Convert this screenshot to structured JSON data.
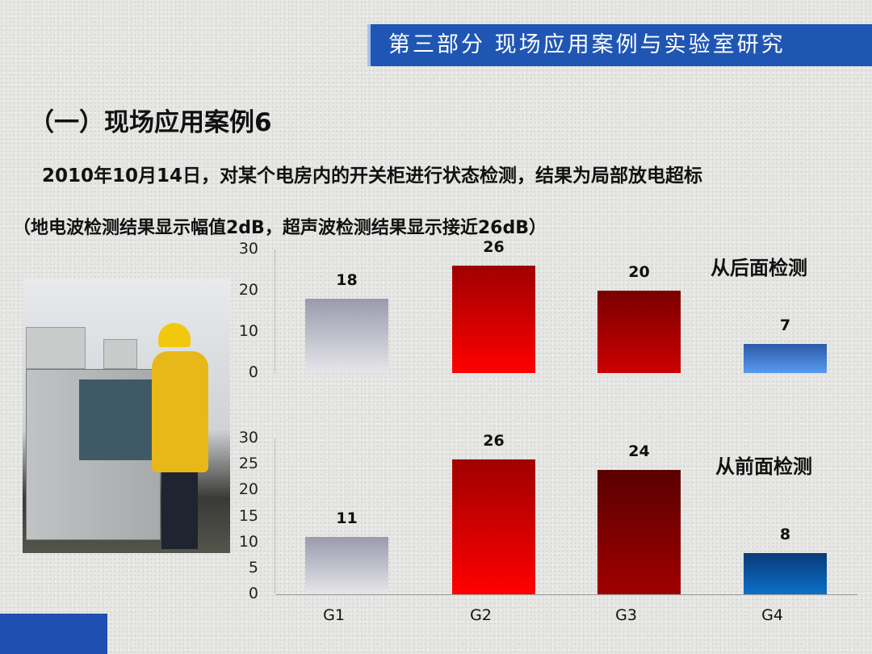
{
  "header": {
    "banner": "第三部分 现场应用案例与实验室研究"
  },
  "title": "（一）现场应用案例6",
  "description": "2010年10月14日，对某个电房内的开关柜进行状态检测，结果为局部放电超标",
  "note": "（地电波检测结果显示幅值2dB，超声波检测结果显示接近26dB）",
  "chart_data": [
    {
      "type": "bar",
      "title": "从后面检测",
      "categories": [
        "G1",
        "G2",
        "G3",
        "G4"
      ],
      "values": [
        18,
        26,
        20,
        7
      ],
      "ylim": [
        0,
        30
      ],
      "yticks": [
        0,
        10,
        20,
        30
      ],
      "show_category_labels": false,
      "colors": [
        [
          "#9a9aae",
          "#e6e6ea"
        ],
        [
          "#a00000",
          "#ff0000"
        ],
        [
          "#7a0000",
          "#cc0000"
        ],
        [
          "#2a5aa8",
          "#5a9af0"
        ]
      ]
    },
    {
      "type": "bar",
      "title": "从前面检测",
      "categories": [
        "G1",
        "G2",
        "G3",
        "G4"
      ],
      "values": [
        11,
        26,
        24,
        8
      ],
      "ylim": [
        0,
        30
      ],
      "yticks": [
        0,
        5,
        10,
        15,
        20,
        25,
        30
      ],
      "show_category_labels": true,
      "colors": [
        [
          "#9a9aae",
          "#e6e6ea"
        ],
        [
          "#a00000",
          "#ff0000"
        ],
        [
          "#5a0000",
          "#a00000"
        ],
        [
          "#0a3a78",
          "#0a70c8"
        ]
      ]
    }
  ]
}
